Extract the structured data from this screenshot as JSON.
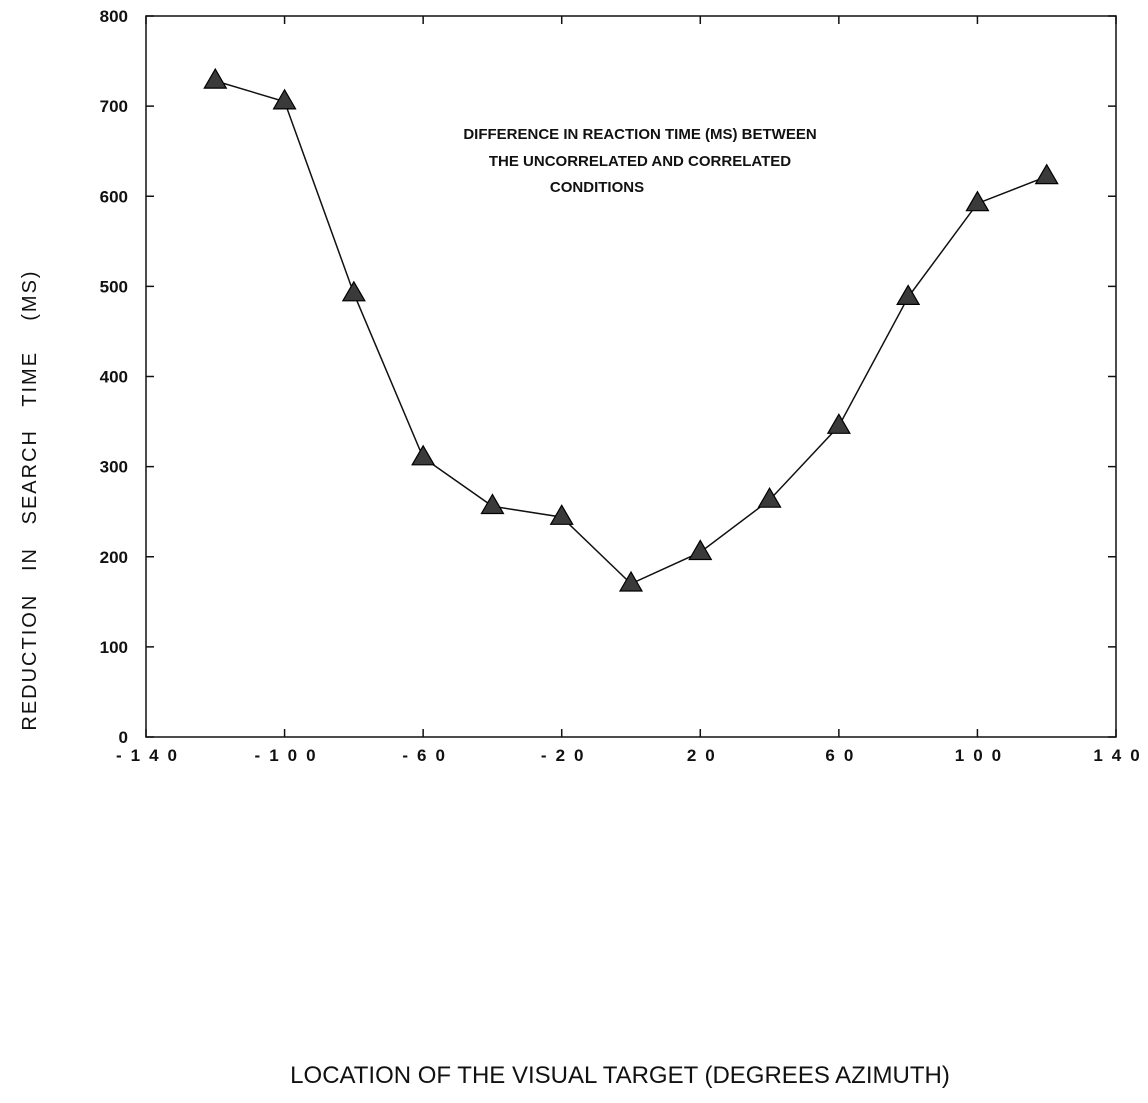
{
  "chart_data": {
    "type": "line",
    "title": "",
    "annotation": [
      "DIFFERENCE IN REACTION TIME (MS) BETWEEN",
      "THE UNCORRELATED AND CORRELATED",
      "CONDITIONS"
    ],
    "xlabel": "LOCATION OF THE VISUAL TARGET (DEGREES AZIMUTH)",
    "ylabel": "REDUCTION   IN   SEARCH   TIME    (MS)",
    "xlim": [
      -140,
      140
    ],
    "ylim": [
      0,
      800
    ],
    "x_ticks": [
      -140,
      -100,
      -60,
      -20,
      20,
      60,
      100,
      140
    ],
    "x_tick_labels": [
      "-140",
      "-100",
      "-60",
      "-20",
      "20",
      "60",
      "100",
      "140"
    ],
    "y_ticks": [
      0,
      100,
      200,
      300,
      400,
      500,
      600,
      700,
      800
    ],
    "y_tick_labels": [
      "0",
      "100",
      "200",
      "300",
      "400",
      "500",
      "600",
      "700",
      "800"
    ],
    "grid": false,
    "marker": "triangle",
    "series": [
      {
        "x": [
          -120,
          -100,
          -80,
          -60,
          -40,
          -20,
          0,
          20,
          40,
          60,
          80,
          100,
          120
        ],
        "y": [
          728,
          705,
          492,
          310,
          256,
          244,
          170,
          205,
          263,
          345,
          488,
          592,
          622
        ]
      }
    ]
  }
}
